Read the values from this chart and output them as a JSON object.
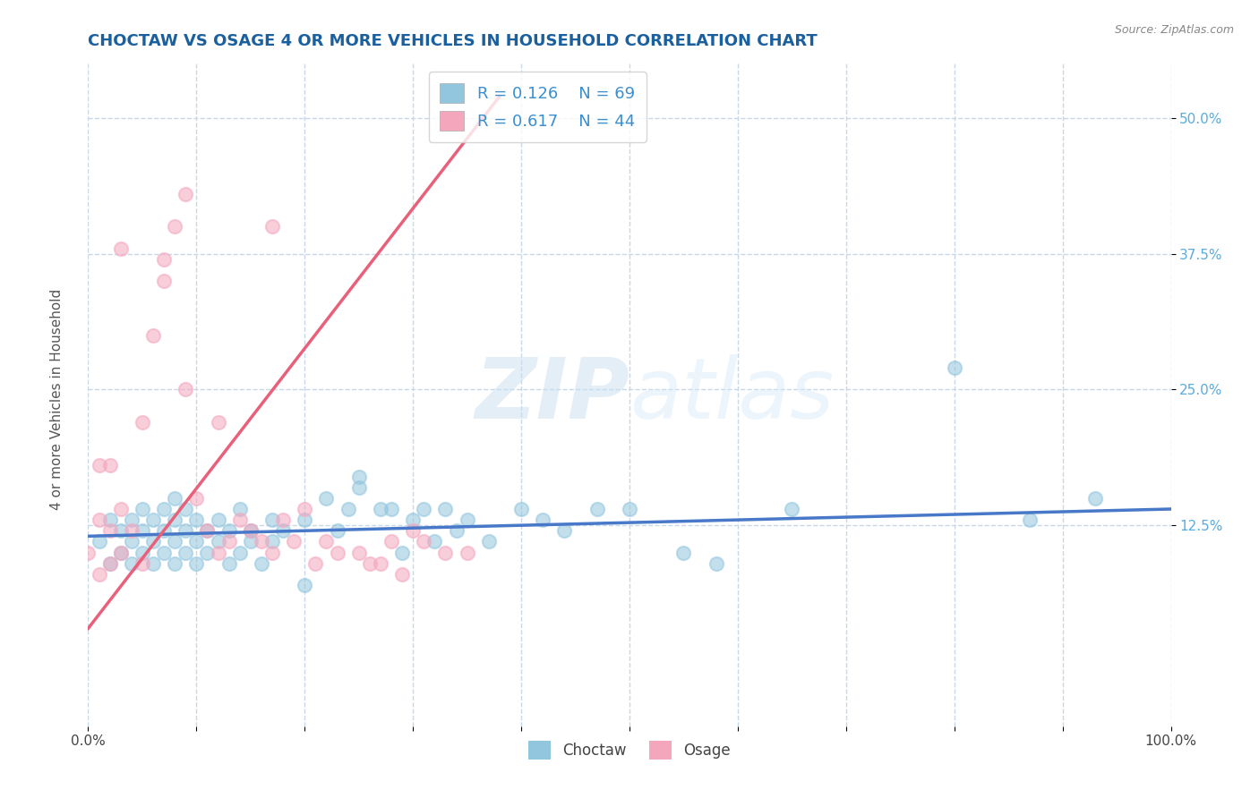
{
  "title": "CHOCTAW VS OSAGE 4 OR MORE VEHICLES IN HOUSEHOLD CORRELATION CHART",
  "source": "Source: ZipAtlas.com",
  "ylabel": "4 or more Vehicles in Household",
  "watermark_zip": "ZIP",
  "watermark_atlas": "atlas",
  "legend_r1": "R = 0.126",
  "legend_n1": "N = 69",
  "legend_r2": "R = 0.617",
  "legend_n2": "N = 44",
  "choctaw_color": "#92c5de",
  "osage_color": "#f4a6bd",
  "choctaw_line_color": "#4878c8",
  "osage_line_color": "#e8607a",
  "legend_text_color": "#3a8fd0",
  "background_color": "#ffffff",
  "grid_color": "#c8d8e8",
  "title_color": "#1a5f9e",
  "ytick_color": "#5aabdf",
  "ylabel_color": "#555555",
  "source_color": "#888888",
  "xlim": [
    0,
    100
  ],
  "ylim": [
    -6,
    55
  ],
  "ytick_positions": [
    12.5,
    25.0,
    37.5,
    50.0
  ],
  "ytick_labels": [
    "12.5%",
    "25.0%",
    "37.5%",
    "50.0%"
  ],
  "choctaw_slope": 0.025,
  "choctaw_intercept": 11.5,
  "osage_slope_x0": 0,
  "osage_slope_y0": 3,
  "osage_slope_x1": 38,
  "osage_slope_y1": 52,
  "figsize": [
    14.06,
    8.92
  ],
  "dpi": 100,
  "choctaw_x": [
    1,
    2,
    2,
    3,
    3,
    4,
    4,
    4,
    5,
    5,
    5,
    6,
    6,
    6,
    7,
    7,
    7,
    8,
    8,
    8,
    8,
    9,
    9,
    9,
    10,
    10,
    10,
    11,
    11,
    12,
    12,
    13,
    13,
    14,
    14,
    15,
    15,
    16,
    17,
    17,
    18,
    20,
    22,
    23,
    24,
    25,
    27,
    29,
    30,
    31,
    32,
    33,
    34,
    35,
    37,
    40,
    42,
    44,
    47,
    50,
    55,
    58,
    65,
    80,
    87,
    93,
    25,
    28,
    20
  ],
  "choctaw_y": [
    11,
    13,
    9,
    12,
    10,
    13,
    9,
    11,
    12,
    10,
    14,
    13,
    9,
    11,
    12,
    10,
    14,
    11,
    13,
    9,
    15,
    12,
    10,
    14,
    11,
    9,
    13,
    12,
    10,
    11,
    13,
    12,
    9,
    10,
    14,
    11,
    12,
    9,
    13,
    11,
    12,
    13,
    15,
    12,
    14,
    16,
    14,
    10,
    13,
    14,
    11,
    14,
    12,
    13,
    11,
    14,
    13,
    12,
    14,
    14,
    10,
    9,
    14,
    27,
    13,
    15,
    17,
    14,
    7
  ],
  "osage_x": [
    0,
    1,
    1,
    2,
    2,
    3,
    3,
    4,
    5,
    5,
    6,
    7,
    8,
    9,
    10,
    11,
    12,
    13,
    14,
    15,
    16,
    17,
    17,
    18,
    19,
    20,
    21,
    22,
    23,
    25,
    26,
    27,
    28,
    29,
    30,
    31,
    33,
    35,
    3,
    7,
    9,
    12,
    2,
    1
  ],
  "osage_y": [
    10,
    13,
    8,
    12,
    9,
    14,
    10,
    12,
    22,
    9,
    30,
    35,
    40,
    43,
    15,
    12,
    10,
    11,
    13,
    12,
    11,
    10,
    40,
    13,
    11,
    14,
    9,
    11,
    10,
    10,
    9,
    9,
    11,
    8,
    12,
    11,
    10,
    10,
    38,
    37,
    25,
    22,
    18,
    18
  ]
}
